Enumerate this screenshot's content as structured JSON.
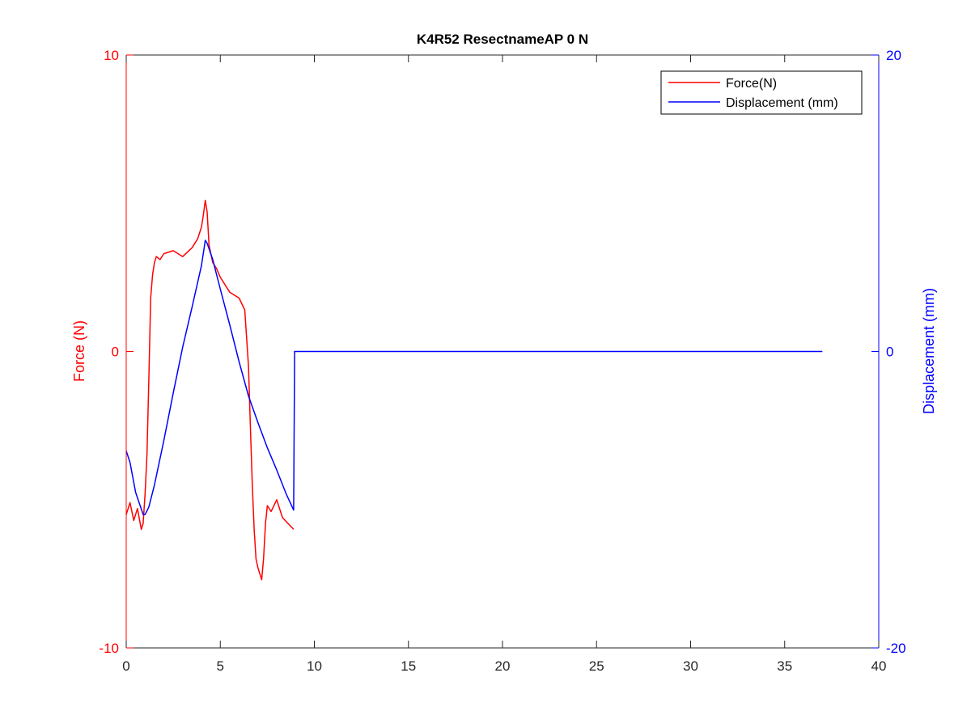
{
  "chart_data": {
    "type": "line",
    "title": "K4R52 ResectnameAP 0 N",
    "xlabel": "",
    "xlim": [
      0,
      40
    ],
    "x_ticks": [
      0,
      5,
      10,
      15,
      20,
      25,
      30,
      35,
      40
    ],
    "grid": false,
    "legend_position": "top-right",
    "left_axis": {
      "label": "Force (N)",
      "color": "#ff0000",
      "ylim": [
        -10,
        10
      ],
      "ticks": [
        -10,
        0,
        10
      ]
    },
    "right_axis": {
      "label": "Displacement (mm)",
      "color": "#0000ff",
      "ylim": [
        -20,
        20
      ],
      "ticks": [
        -20,
        0,
        20
      ]
    },
    "series": [
      {
        "name": "Force(N)",
        "axis": "left",
        "color": "#ff0000",
        "x": [
          0,
          0.2,
          0.4,
          0.6,
          0.8,
          0.9,
          1.0,
          1.1,
          1.2,
          1.3,
          1.4,
          1.5,
          1.6,
          1.8,
          2.0,
          2.5,
          3.0,
          3.5,
          3.8,
          4.0,
          4.1,
          4.2,
          4.3,
          4.4,
          4.6,
          4.8,
          5.0,
          5.5,
          6.0,
          6.3,
          6.5,
          6.6,
          6.7,
          6.8,
          6.9,
          7.0,
          7.1,
          7.2,
          7.3,
          7.4,
          7.5,
          7.7,
          8.0,
          8.3,
          8.6,
          8.9
        ],
        "values": [
          -5.5,
          -5.1,
          -5.7,
          -5.3,
          -6.0,
          -5.8,
          -4.8,
          -3.5,
          -1.0,
          1.8,
          2.6,
          3.0,
          3.2,
          3.1,
          3.3,
          3.4,
          3.2,
          3.5,
          3.8,
          4.2,
          4.6,
          5.1,
          4.7,
          3.6,
          3.0,
          2.8,
          2.5,
          2.0,
          1.8,
          1.4,
          -0.5,
          -2.5,
          -4.5,
          -6.0,
          -7.0,
          -7.3,
          -7.5,
          -7.7,
          -7.0,
          -5.8,
          -5.2,
          -5.4,
          -5.0,
          -5.6,
          -5.8,
          -6.0
        ]
      },
      {
        "name": "Displacement (mm)",
        "axis": "right",
        "color": "#0000ff",
        "x": [
          0,
          0.2,
          0.5,
          0.9,
          1.0,
          1.2,
          1.5,
          2.0,
          2.5,
          3.0,
          3.5,
          4.0,
          4.2,
          4.3,
          4.6,
          5.0,
          5.5,
          6.0,
          6.5,
          7.0,
          7.5,
          8.0,
          8.5,
          8.9,
          8.95,
          9.0,
          37.0
        ],
        "values": [
          -6.7,
          -7.5,
          -9.5,
          -11.0,
          -11.0,
          -10.5,
          -9.0,
          -6.0,
          -2.8,
          0.3,
          3.0,
          5.8,
          7.5,
          7.3,
          6.2,
          4.2,
          1.8,
          -0.7,
          -3.0,
          -4.8,
          -6.5,
          -8.0,
          -9.6,
          -10.7,
          0,
          0,
          0
        ]
      }
    ]
  }
}
